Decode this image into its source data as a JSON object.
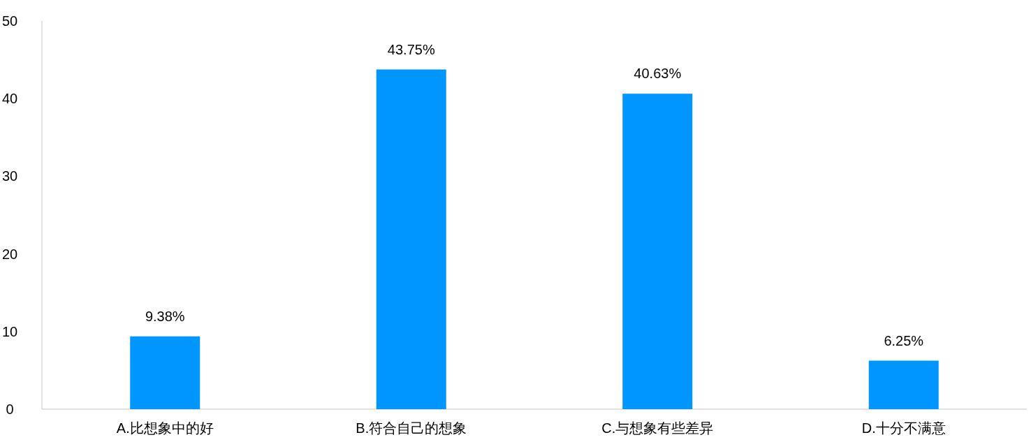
{
  "chart_data": {
    "type": "bar",
    "categories": [
      "A.比想象中的好",
      "B.符合自己的想象",
      "C.与想象有些差异",
      "D.十分不满意"
    ],
    "values": [
      9.38,
      43.75,
      40.63,
      6.25
    ],
    "value_labels": [
      "9.38%",
      "43.75%",
      "40.63%",
      "6.25%"
    ],
    "color": "#0096ff",
    "ylim": [
      0,
      50
    ],
    "yticks": [
      0,
      10,
      20,
      30,
      40,
      50
    ]
  }
}
